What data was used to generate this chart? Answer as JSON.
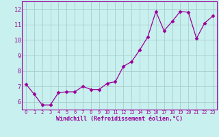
{
  "x": [
    0,
    1,
    2,
    3,
    4,
    5,
    6,
    7,
    8,
    9,
    10,
    11,
    12,
    13,
    14,
    15,
    16,
    17,
    18,
    19,
    20,
    21,
    22,
    23
  ],
  "y": [
    7.15,
    6.5,
    5.8,
    5.8,
    6.6,
    6.65,
    6.65,
    7.0,
    6.8,
    6.8,
    7.2,
    7.3,
    8.3,
    8.6,
    9.35,
    10.2,
    11.85,
    10.6,
    11.2,
    11.85,
    11.8,
    10.1,
    11.1,
    11.55
  ],
  "line_color": "#990099",
  "marker": "D",
  "marker_size": 2.5,
  "bg_color": "#c8f0ee",
  "grid_color": "#aacccc",
  "xlabel": "Windchill (Refroidissement éolien,°C)",
  "xlim": [
    -0.5,
    23.5
  ],
  "ylim": [
    5.5,
    12.5
  ],
  "yticks": [
    6,
    7,
    8,
    9,
    10,
    11,
    12
  ],
  "xticks": [
    0,
    1,
    2,
    3,
    4,
    5,
    6,
    7,
    8,
    9,
    10,
    11,
    12,
    13,
    14,
    15,
    16,
    17,
    18,
    19,
    20,
    21,
    22,
    23
  ]
}
